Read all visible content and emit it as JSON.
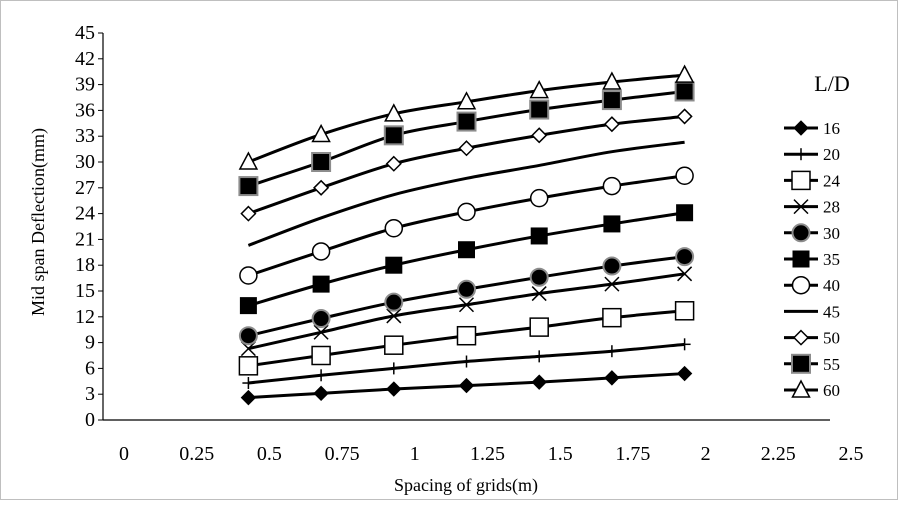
{
  "chart_data": {
    "type": "line",
    "title": "",
    "xlabel": "Spacing of grids(m)",
    "ylabel": "Mid span Deflection(mm)",
    "legend_title": "L/D",
    "legend_position": "right",
    "grid": false,
    "xlim": [
      0,
      2.5
    ],
    "ylim": [
      0,
      45
    ],
    "x_ticks": [
      "0",
      "0.25",
      "0.5",
      "0.75",
      "1",
      "1.25",
      "1.5",
      "1.75",
      "2",
      "2.25",
      "2.5"
    ],
    "y_ticks": [
      "0",
      "3",
      "6",
      "9",
      "12",
      "15",
      "18",
      "21",
      "24",
      "27",
      "30",
      "33",
      "36",
      "39",
      "42",
      "45"
    ],
    "x": [
      0.5,
      0.75,
      1,
      1.25,
      1.5,
      1.75,
      2
    ],
    "series": [
      {
        "name": "16",
        "marker": "diamond-filled",
        "values": [
          2.6,
          3.1,
          3.6,
          4.0,
          4.4,
          4.9,
          5.4
        ]
      },
      {
        "name": "20",
        "marker": "plus",
        "values": [
          4.3,
          5.2,
          6.0,
          6.8,
          7.4,
          8.0,
          8.8
        ]
      },
      {
        "name": "24",
        "marker": "square-open",
        "values": [
          6.3,
          7.5,
          8.7,
          9.8,
          10.8,
          11.9,
          12.7
        ]
      },
      {
        "name": "28",
        "marker": "x",
        "values": [
          8.3,
          10.2,
          12.1,
          13.4,
          14.7,
          15.8,
          17.0
        ]
      },
      {
        "name": "30",
        "marker": "circle-filled",
        "values": [
          9.8,
          11.8,
          13.7,
          15.2,
          16.6,
          17.9,
          19.0
        ]
      },
      {
        "name": "35",
        "marker": "square-filled",
        "values": [
          13.3,
          15.8,
          18.0,
          19.8,
          21.4,
          22.8,
          24.1
        ]
      },
      {
        "name": "40",
        "marker": "circle-open",
        "values": [
          16.8,
          19.6,
          22.3,
          24.2,
          25.8,
          27.2,
          28.4
        ]
      },
      {
        "name": "45",
        "marker": "dash",
        "values": [
          20.3,
          23.5,
          26.2,
          28.1,
          29.6,
          31.2,
          32.3
        ]
      },
      {
        "name": "50",
        "marker": "diamond-open",
        "values": [
          24.0,
          27.0,
          29.8,
          31.6,
          33.1,
          34.4,
          35.3
        ]
      },
      {
        "name": "55",
        "marker": "square-filled-gray",
        "values": [
          27.2,
          30.0,
          33.1,
          34.7,
          36.1,
          37.2,
          38.2
        ]
      },
      {
        "name": "60",
        "marker": "triangle-open",
        "values": [
          30.0,
          33.2,
          35.6,
          37.0,
          38.3,
          39.3,
          40.1
        ]
      }
    ]
  }
}
